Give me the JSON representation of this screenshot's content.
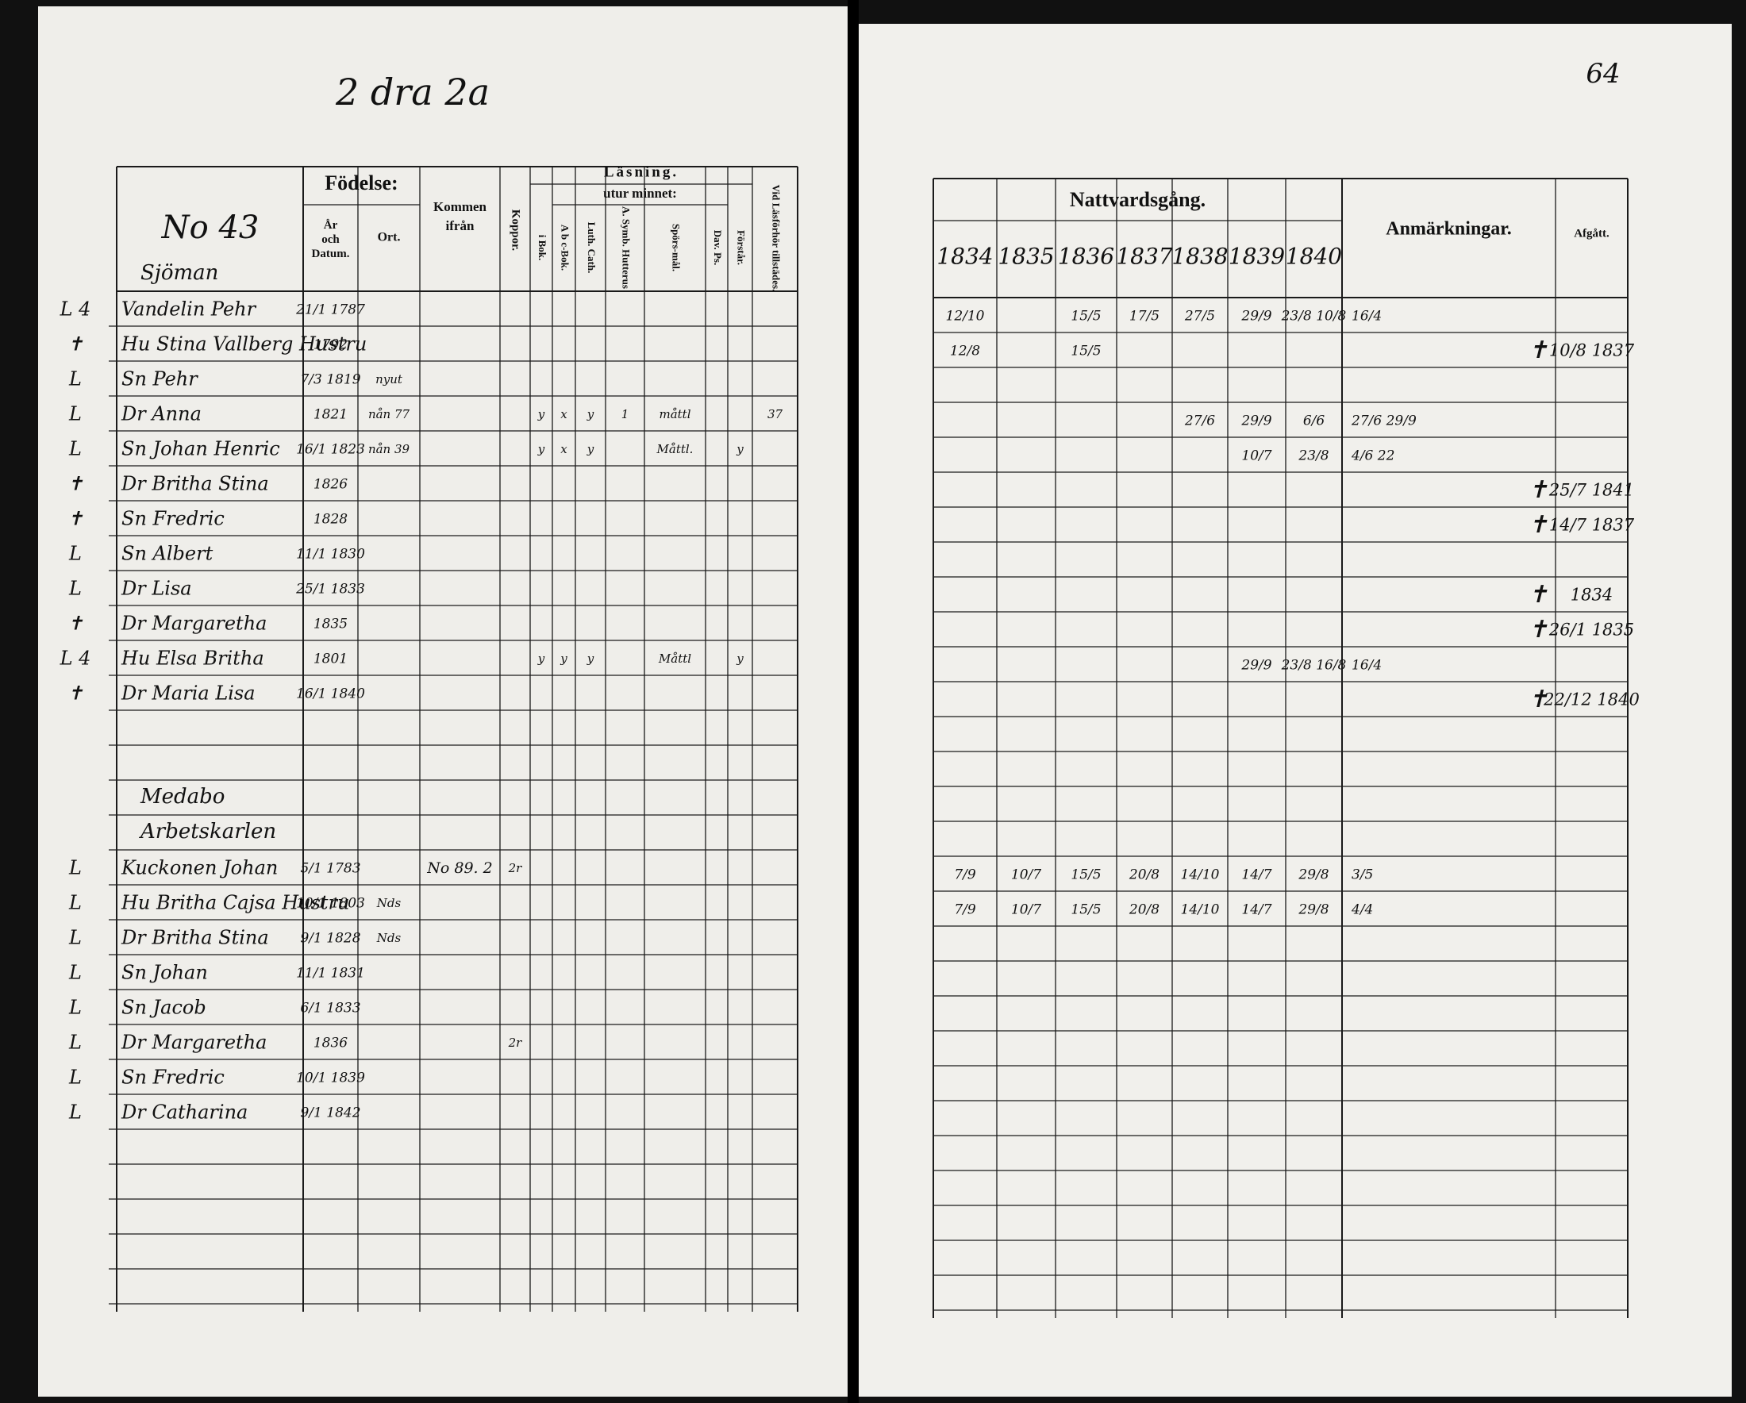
{
  "left_page": {
    "heading": "2 dra 2a",
    "household_no": "No 43",
    "headers": {
      "birth": "Födelse:",
      "date": "År och Datum.",
      "place": "Ort.",
      "from": "Kommen ifrån",
      "smallpox": "Koppor.",
      "reading": "Läsning.",
      "by_heart": "utur minnet:",
      "reading_columns": [
        "i Bok.",
        "A b c-Bok.",
        "Luth. Cath.",
        "A. Symb. Hutterus",
        "Spörs-mål.",
        "Dav. Ps.",
        "Förstår.",
        "Vid Läsförhör tillstädes."
      ]
    }
  },
  "right_page": {
    "page_number": "64",
    "communion_header": "Nattvardsgång.",
    "years": [
      "1834",
      "1835",
      "1836",
      "1837",
      "1838",
      "1839",
      "1840"
    ],
    "remarks_header": "Anmärkningar.",
    "departed_header": "Afgått."
  },
  "households": [
    {
      "label": [
        "Sjöman"
      ],
      "members": [
        {
          "mark": "L 4",
          "name": "Vandelin Pehr",
          "born": "21/1 1787",
          "communion": [
            "12/10",
            null,
            "15/5",
            "17/5",
            "27/5",
            "29/9",
            "23/8 10/8"
          ],
          "remark": "16/4"
        },
        {
          "mark": "✝",
          "name": "Hu Stina Vallberg Hustru",
          "born": "1792",
          "communion": [
            "12/8",
            null,
            "15/5",
            null,
            null,
            null,
            null
          ],
          "cross": "✝",
          "departed": "10/8 1837"
        },
        {
          "mark": "L",
          "name": "Sn Pehr",
          "born": "7/3 1819",
          "place": "nyut"
        },
        {
          "mark": "L",
          "name": "Dr Anna",
          "born": "1821",
          "place": "nån 77",
          "reading": [
            "y",
            "x",
            "y",
            "1",
            "måttl",
            null,
            null,
            "37"
          ],
          "communion": [
            null,
            null,
            null,
            null,
            "27/6",
            "29/9",
            "6/6"
          ],
          "remark": "27/6 29/9"
        },
        {
          "mark": "L",
          "name": "Sn Johan Henric",
          "born": "16/1 1823",
          "place": "nån 39",
          "reading": [
            "y",
            "x",
            "y",
            null,
            "Måttl.",
            null,
            "y",
            null
          ],
          "communion": [
            null,
            null,
            null,
            null,
            null,
            "10/7",
            "23/8"
          ],
          "remark": "4/6 22"
        },
        {
          "mark": "✝",
          "name": "Dr Britha Stina",
          "born": "1826",
          "cross": "✝",
          "departed": "25/7 1841"
        },
        {
          "mark": "✝",
          "name": "Sn Fredric",
          "born": "1828",
          "cross": "✝",
          "departed": "14/7 1837"
        },
        {
          "mark": "L",
          "name": "Sn Albert",
          "born": "11/1 1830"
        },
        {
          "mark": "L",
          "name": "Dr Lisa",
          "born": "25/1 1833",
          "cross": "✝",
          "departed": "1834"
        },
        {
          "mark": "✝",
          "name": "Dr Margaretha",
          "born": "1835",
          "cross": "✝",
          "departed": "26/1 1835"
        },
        {
          "mark": "L 4",
          "name": "Hu Elsa Britha",
          "born": "1801",
          "reading": [
            "y",
            "y",
            "y",
            null,
            "Måttl",
            null,
            "y",
            null
          ],
          "communion": [
            null,
            null,
            null,
            null,
            null,
            "29/9",
            "23/8 16/8"
          ],
          "remark": "16/4"
        },
        {
          "mark": "✝",
          "name": "Dr Maria Lisa",
          "born": "16/1 1840",
          "cross": "✝",
          "departed": "22/12 1840"
        }
      ]
    },
    {
      "label": [
        "Medabo",
        "Arbetskarlen"
      ],
      "members": [
        {
          "mark": "L",
          "name": "Kuckonen Johan",
          "born": "5/1 1783",
          "from": "No 89. 2",
          "smallpox": "2r",
          "communion": [
            "7/9",
            "10/7",
            "15/5",
            "20/8",
            "14/10",
            "14/7",
            "29/8"
          ],
          "remark": "3/5"
        },
        {
          "mark": "L",
          "name": "Hu Britha Cajsa Hustru",
          "born": "10/1 1803",
          "place": "Nds",
          "communion": [
            "7/9",
            "10/7",
            "15/5",
            "20/8",
            "14/10",
            "14/7",
            "29/8"
          ],
          "remark": "4/4"
        },
        {
          "mark": "L",
          "name": "Dr Britha Stina",
          "born": "9/1 1828",
          "place": "Nds"
        },
        {
          "mark": "L",
          "name": "Sn Johan",
          "born": "11/1 1831"
        },
        {
          "mark": "L",
          "name": "Sn Jacob",
          "born": "6/1 1833"
        },
        {
          "mark": "L",
          "name": "Dr Margaretha",
          "born": "1836",
          "smallpox": "2r"
        },
        {
          "mark": "L",
          "name": "Sn Fredric",
          "born": "10/1 1839"
        },
        {
          "mark": "L",
          "name": "Dr Catharina",
          "born": "9/1 1842"
        }
      ]
    }
  ]
}
